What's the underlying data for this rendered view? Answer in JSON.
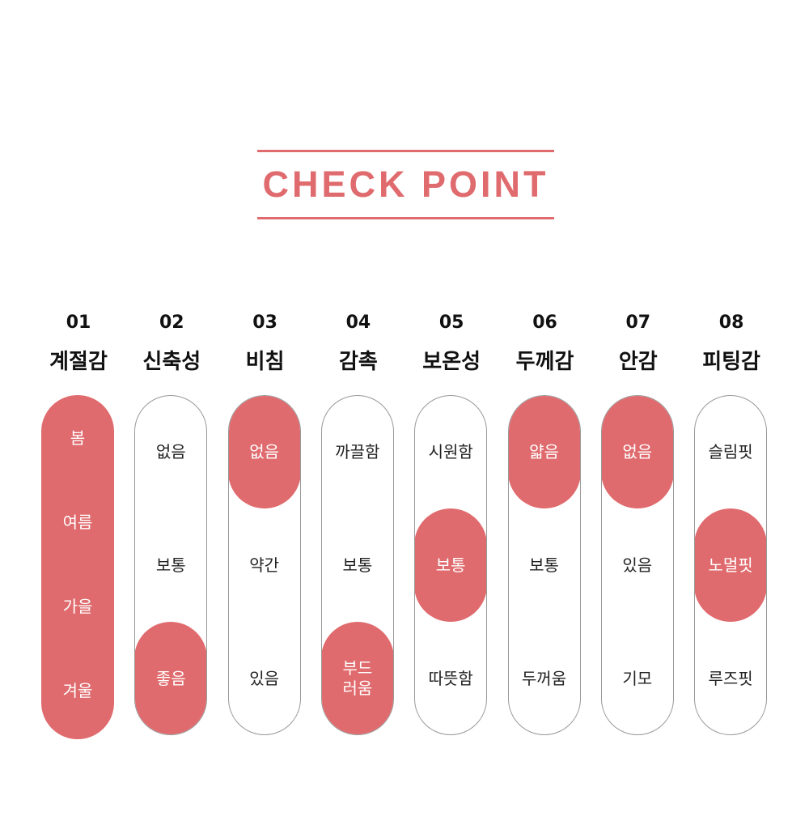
{
  "title": "CHECK POINT",
  "accent_color": "#e06b6e",
  "columns": [
    {
      "num": "01",
      "label": "계절감",
      "options": [
        "봄",
        "여름",
        "가을",
        "겨울"
      ],
      "selected": "all"
    },
    {
      "num": "02",
      "label": "신축성",
      "options": [
        "없음",
        "보통",
        "좋음"
      ],
      "selected": 2
    },
    {
      "num": "03",
      "label": "비침",
      "options": [
        "없음",
        "약간",
        "있음"
      ],
      "selected": 0
    },
    {
      "num": "04",
      "label": "감촉",
      "options": [
        "까끌함",
        "보통",
        "부드\n러움"
      ],
      "selected": 2
    },
    {
      "num": "05",
      "label": "보온성",
      "options": [
        "시원함",
        "보통",
        "따뜻함"
      ],
      "selected": 1
    },
    {
      "num": "06",
      "label": "두께감",
      "options": [
        "얇음",
        "보통",
        "두꺼움"
      ],
      "selected": 0
    },
    {
      "num": "07",
      "label": "안감",
      "options": [
        "없음",
        "있음",
        "기모"
      ],
      "selected": 0
    },
    {
      "num": "08",
      "label": "피팅감",
      "options": [
        "슬림핏",
        "노멀핏",
        "루즈핏"
      ],
      "selected": 1
    }
  ]
}
